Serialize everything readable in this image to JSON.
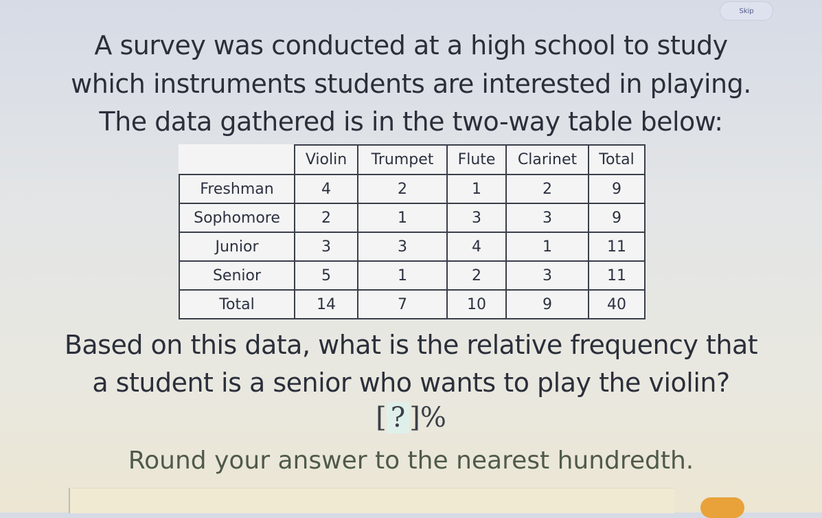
{
  "skip_label": "Skip",
  "question": {
    "intro_lines": [
      "A survey was conducted at a high school to study",
      "which instruments students are interested in playing.",
      "The data gathered is in the two-way table below:"
    ],
    "prompt_lines": [
      "Based on this data, what is the relative frequency that",
      "a student is a senior who wants to play the violin?"
    ],
    "answer_placeholder": "?",
    "answer_unit": "%",
    "instruction": "Round your answer to the nearest hundredth."
  },
  "table": {
    "columns": [
      "",
      "Violin",
      "Trumpet",
      "Flute",
      "Clarinet",
      "Total"
    ],
    "rows": [
      [
        "Freshman",
        "4",
        "2",
        "1",
        "2",
        "9"
      ],
      [
        "Sophomore",
        "2",
        "1",
        "3",
        "3",
        "9"
      ],
      [
        "Junior",
        "3",
        "3",
        "4",
        "1",
        "11"
      ],
      [
        "Senior",
        "5",
        "1",
        "2",
        "3",
        "11"
      ],
      [
        "Total",
        "14",
        "7",
        "10",
        "9",
        "40"
      ]
    ]
  },
  "colors": {
    "submit": "#e9a23a"
  }
}
